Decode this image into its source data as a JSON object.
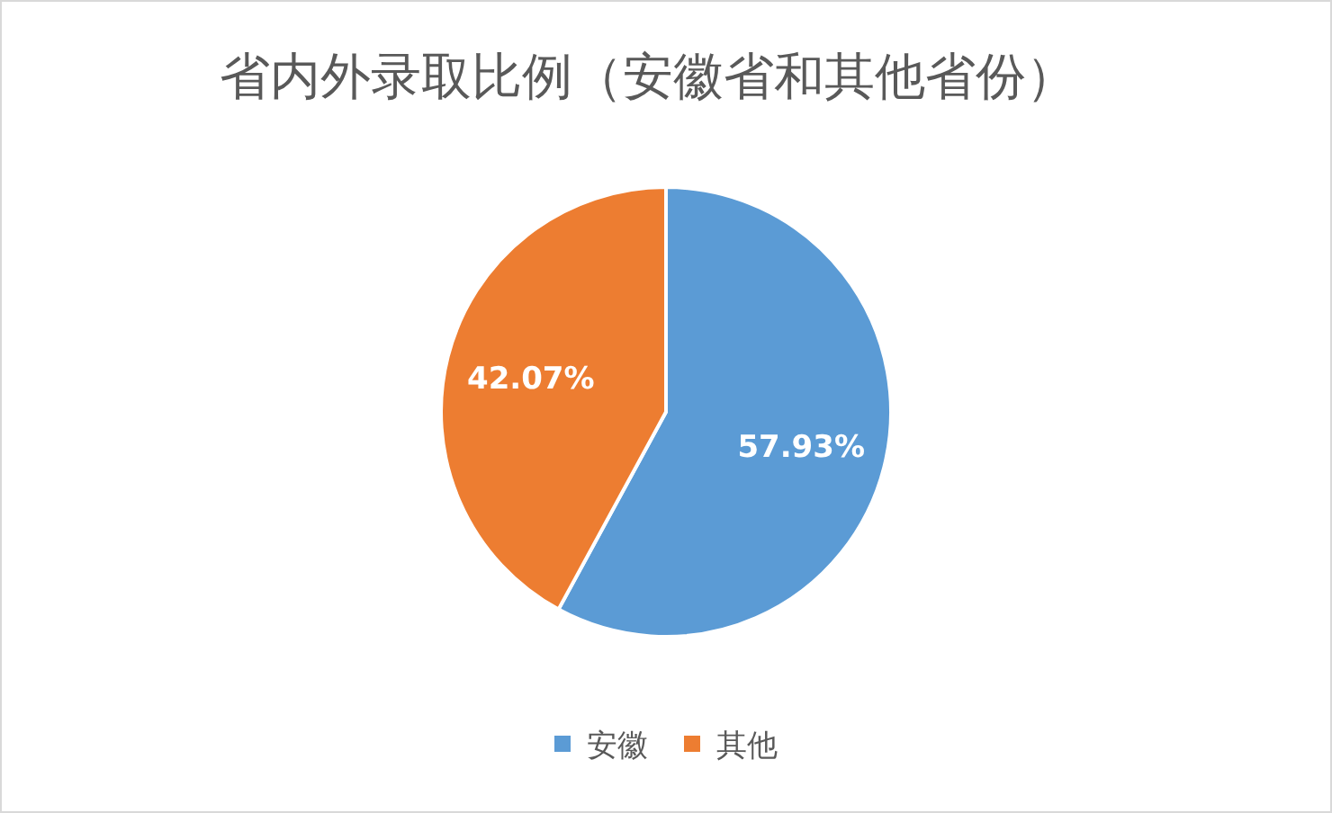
{
  "chart_data": {
    "type": "pie",
    "title": "省内外录取比例（安徽省和其他省份）",
    "categories": [
      "安徽",
      "其他"
    ],
    "values": [
      57.93,
      42.07
    ],
    "colors": [
      "#5b9bd5",
      "#ed7d31"
    ],
    "value_labels": [
      "57.93%",
      "42.07%"
    ],
    "legend": "bottom"
  }
}
